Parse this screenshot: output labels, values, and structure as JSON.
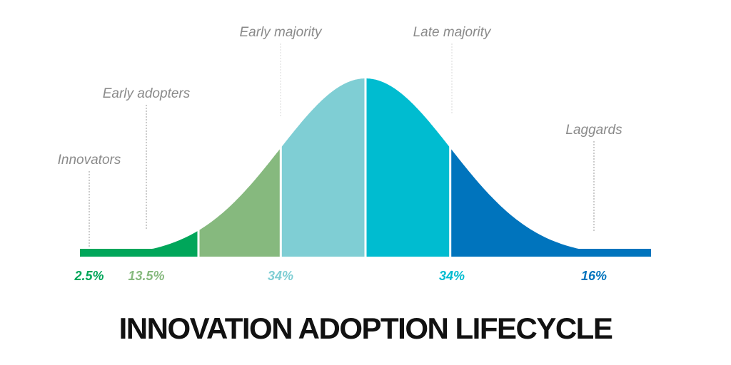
{
  "chart_data": {
    "type": "area",
    "title": "INNOVATION ADOPTION LIFECYCLE",
    "xlabel": "",
    "ylabel": "",
    "grid": false,
    "segments": [
      {
        "label": "Innovators",
        "percent_label": "2.5%",
        "value": 2.5,
        "color": "#00a65a"
      },
      {
        "label": "Early adopters",
        "percent_label": "13.5%",
        "value": 13.5,
        "color": "#86b97e"
      },
      {
        "label": "Early majority",
        "percent_label": "34%",
        "value": 34,
        "color": "#7fced4"
      },
      {
        "label": "Late majority",
        "percent_label": "34%",
        "value": 34,
        "color": "#00bcd0"
      },
      {
        "label": "Laggards",
        "percent_label": "16%",
        "value": 16,
        "color": "#0074bd"
      }
    ]
  }
}
